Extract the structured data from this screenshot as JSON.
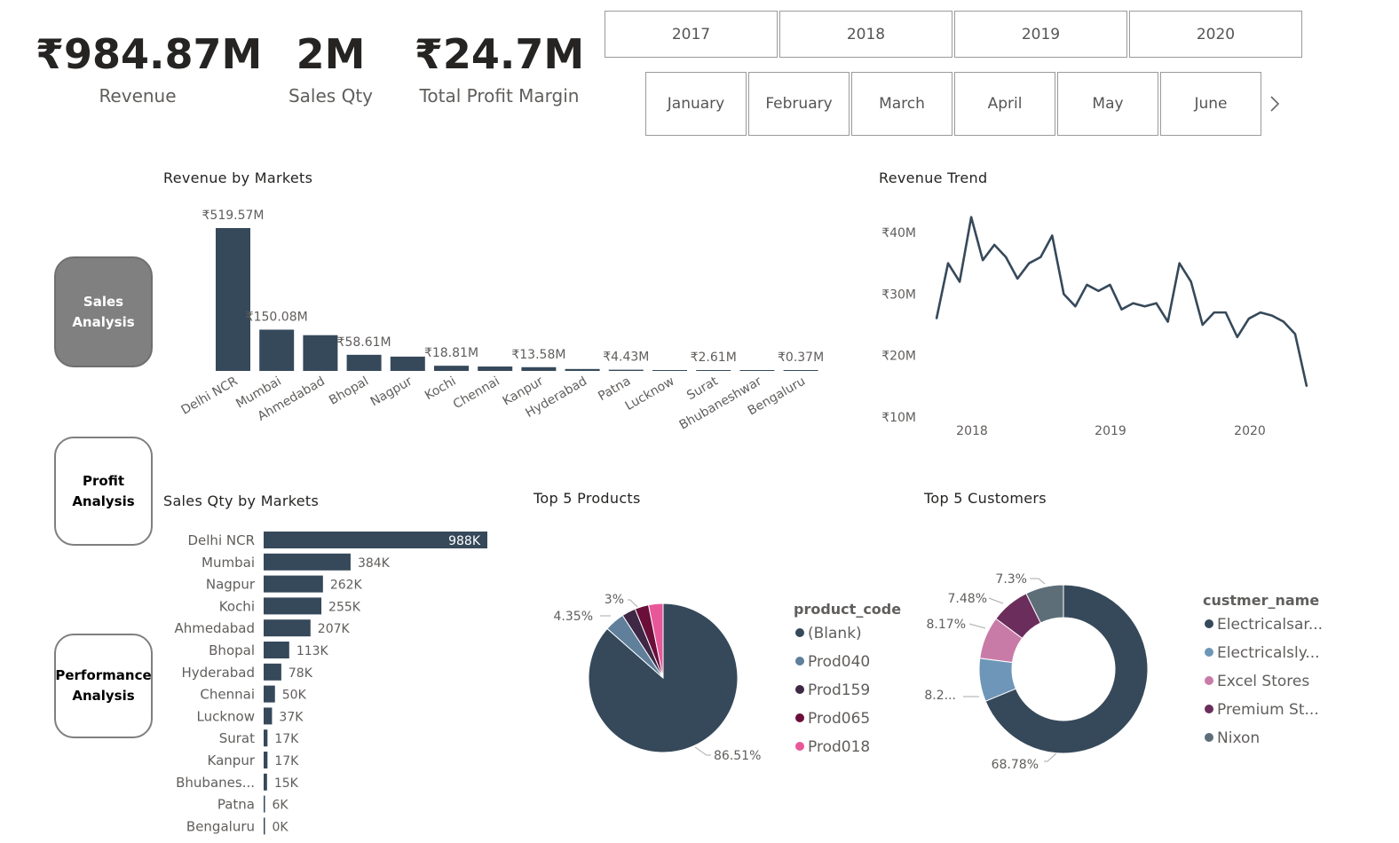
{
  "kpis": [
    {
      "value": "₹984.87M",
      "label": "Revenue"
    },
    {
      "value": "2M",
      "label": "Sales Qty"
    },
    {
      "value": "₹24.7M",
      "label": "Total Profit Margin"
    }
  ],
  "year_slicer": [
    "2017",
    "2018",
    "2019",
    "2020"
  ],
  "month_slicer": [
    "January",
    "February",
    "March",
    "April",
    "May",
    "June"
  ],
  "nav": {
    "sales": "Sales Analysis",
    "profit": "Profit Analysis",
    "performance": "Performance Analysis"
  },
  "icons": {
    "next": "chevron-right-icon"
  },
  "colors": {
    "primary": "#36495a",
    "nav_active": "#808080"
  },
  "chart_data": [
    {
      "id": "revenue_by_markets",
      "type": "bar",
      "title": "Revenue by Markets",
      "categories": [
        "Delhi NCR",
        "Mumbai",
        "Ahmedabad",
        "Bhopal",
        "Nagpur",
        "Kochi",
        "Chennai",
        "Kanpur",
        "Hyderabad",
        "Patna",
        "Lucknow",
        "Surat",
        "Bhubaneshwar",
        "Bengaluru"
      ],
      "values": [
        519.57,
        150.08,
        130,
        58.61,
        52,
        18.81,
        16,
        13.58,
        7,
        4.43,
        3,
        2.61,
        1.5,
        0.37
      ],
      "data_labels": [
        "₹519.57M",
        "₹150.08M",
        "",
        "₹58.61M",
        "",
        "₹18.81M",
        "",
        "₹13.58M",
        "",
        "₹4.43M",
        "",
        "₹2.61M",
        "",
        "₹0.37M"
      ],
      "color": "#36495a"
    },
    {
      "id": "revenue_trend",
      "type": "line",
      "title": "Revenue Trend",
      "x_ticks": [
        "2018",
        "2019",
        "2020"
      ],
      "y_ticks": [
        "₹10M",
        "₹20M",
        "₹30M",
        "₹40M"
      ],
      "ylim": [
        10,
        43
      ],
      "values": [
        26,
        35,
        32,
        42.5,
        35.5,
        38,
        36,
        32.5,
        35,
        36,
        39.5,
        30,
        28,
        31.5,
        30.5,
        31.5,
        27.5,
        28.5,
        28,
        28.5,
        25.5,
        35,
        32,
        25,
        27,
        27,
        23,
        26,
        27,
        26.5,
        25.5,
        23.5,
        15
      ],
      "color": "#36495a"
    },
    {
      "id": "sales_qty_by_markets",
      "type": "bar",
      "orientation": "horizontal",
      "title": "Sales Qty by Markets",
      "categories": [
        "Delhi NCR",
        "Mumbai",
        "Nagpur",
        "Kochi",
        "Ahmedabad",
        "Bhopal",
        "Hyderabad",
        "Chennai",
        "Lucknow",
        "Surat",
        "Kanpur",
        "Bhubanes...",
        "Patna",
        "Bengaluru"
      ],
      "values": [
        988,
        384,
        262,
        255,
        207,
        113,
        78,
        50,
        37,
        17,
        17,
        15,
        6,
        0
      ],
      "data_labels": [
        "988K",
        "384K",
        "262K",
        "255K",
        "207K",
        "113K",
        "78K",
        "50K",
        "37K",
        "17K",
        "17K",
        "15K",
        "6K",
        "0K"
      ],
      "color": "#36495a"
    },
    {
      "id": "top5_products",
      "type": "pie",
      "title": "Top 5 Products",
      "legend_title": "product_code",
      "labels": [
        "(Blank)",
        "Prod040",
        "Prod159",
        "Prod065",
        "Prod018"
      ],
      "values": [
        86.51,
        4.35,
        3.0,
        3.0,
        3.14
      ],
      "slice_labels": [
        "86.51%",
        "4.35%",
        "3%",
        "",
        ""
      ],
      "colors": [
        "#36495a",
        "#5f7f9b",
        "#3e2846",
        "#6b0f3a",
        "#e8579a"
      ]
    },
    {
      "id": "top5_customers",
      "type": "pie",
      "donut": true,
      "title": "Top 5 Customers",
      "legend_title": "custmer_name",
      "labels": [
        "Electricalsar...",
        "Electricalsly...",
        "Excel Stores",
        "Premium St...",
        "Nixon"
      ],
      "values": [
        68.78,
        8.27,
        8.17,
        7.48,
        7.3
      ],
      "slice_labels": [
        "68.78%",
        "8.2...",
        "8.17%",
        "7.48%",
        "7.3%"
      ],
      "colors": [
        "#36495a",
        "#6e96b8",
        "#c97ba8",
        "#6b2d5c",
        "#5e6e79"
      ]
    }
  ]
}
